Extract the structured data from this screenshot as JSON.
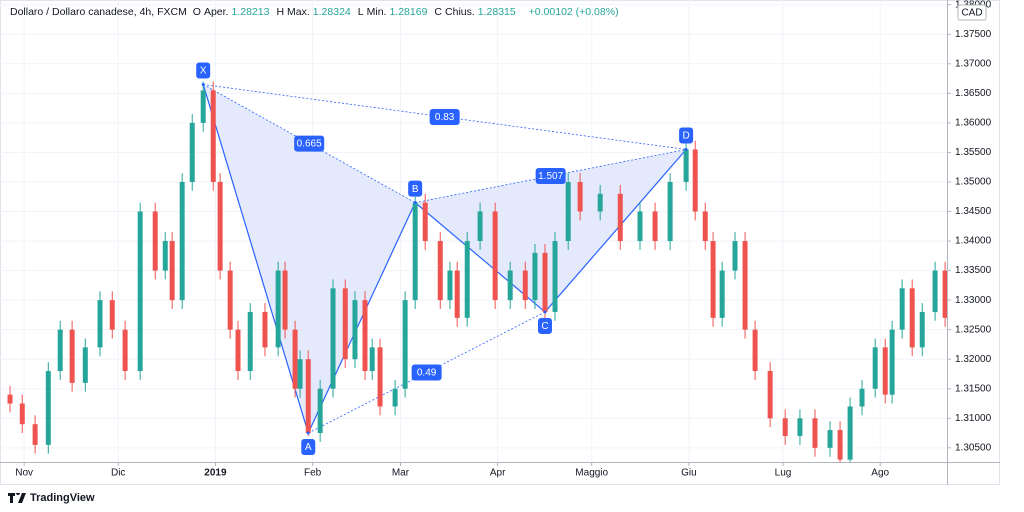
{
  "header": {
    "title": "Dollaro / Dollaro canadese, 4h, FXCM",
    "fields": [
      {
        "key": "O",
        "name": "Aper.",
        "value": "1.28213"
      },
      {
        "key": "H",
        "name": "Max.",
        "value": "1.28324"
      },
      {
        "key": "L",
        "name": "Min.",
        "value": "1.28169"
      },
      {
        "key": "C",
        "name": "Chius.",
        "value": "1.28315"
      }
    ],
    "change": "+0.00102 (+0.08%)"
  },
  "currency": "CAD",
  "brand": "TradingView",
  "chart_data": {
    "type": "candlestick",
    "up_color": "#26a69a",
    "down_color": "#ef5350",
    "grid": true,
    "xlim": [
      -7.7,
      294.3
    ],
    "ylim": [
      1.3026,
      1.3808
    ],
    "xticks": [
      {
        "value": 0,
        "label": "Nov"
      },
      {
        "value": 30,
        "label": "Dic"
      },
      {
        "value": 61,
        "label": "2019"
      },
      {
        "value": 92,
        "label": "Feb"
      },
      {
        "value": 120,
        "label": "Mar"
      },
      {
        "value": 151,
        "label": "Apr"
      },
      {
        "value": 181,
        "label": "Maggio"
      },
      {
        "value": 212,
        "label": "Giu"
      },
      {
        "value": 242,
        "label": "Lug"
      },
      {
        "value": 273,
        "label": "Ago"
      }
    ],
    "yticks": [
      {
        "value": 1.305,
        "label": "1.30500"
      },
      {
        "value": 1.31,
        "label": "1.31000"
      },
      {
        "value": 1.315,
        "label": "1.31500"
      },
      {
        "value": 1.32,
        "label": "1.32000"
      },
      {
        "value": 1.325,
        "label": "1.32500"
      },
      {
        "value": 1.33,
        "label": "1.33000"
      },
      {
        "value": 1.335,
        "label": "1.33500"
      },
      {
        "value": 1.34,
        "label": "1.34000"
      },
      {
        "value": 1.345,
        "label": "1.34500"
      },
      {
        "value": 1.35,
        "label": "1.35000"
      },
      {
        "value": 1.355,
        "label": "1.35500"
      },
      {
        "value": 1.36,
        "label": "1.36000"
      },
      {
        "value": 1.365,
        "label": "1.36500"
      },
      {
        "value": 1.37,
        "label": "1.37000"
      },
      {
        "value": 1.375,
        "label": "1.37500"
      },
      {
        "value": 1.38,
        "label": "1.38000"
      }
    ],
    "x": [
      -4.5,
      -0.6,
      3.5,
      7.7,
      11.5,
      15.3,
      19.5,
      24.2,
      28.1,
      32.2,
      37,
      41.8,
      45,
      47.2,
      50.4,
      53.6,
      57.1,
      60.3,
      62.5,
      65.7,
      68.2,
      72.1,
      76.8,
      81,
      83.2,
      86.4,
      88,
      90.6,
      94.4,
      98.5,
      102.4,
      105.5,
      108.7,
      111,
      113.5,
      118.3,
      121.5,
      124.7,
      127.9,
      132.7,
      135.8,
      138.1,
      141.3,
      145.4,
      150.2,
      155,
      159.8,
      162.9,
      166.1,
      169.3,
      173.5,
      177.3,
      183.7,
      190.1,
      196.4,
      201.2,
      206,
      211.1,
      214,
      217.2,
      219.7,
      222.6,
      226.7,
      229.9,
      233.1,
      237.9,
      242.7,
      247.4,
      252.2,
      257,
      260.2,
      263.4,
      267.2,
      271.4,
      274.6,
      276.8,
      280,
      283.2,
      286.4,
      290.5,
      293.7
    ],
    "open": [
      1.314,
      1.3125,
      1.309,
      1.3055,
      1.318,
      1.325,
      1.316,
      1.322,
      1.33,
      1.325,
      1.318,
      1.345,
      1.335,
      1.34,
      1.33,
      1.35,
      1.36,
      1.3655,
      1.35,
      1.335,
      1.325,
      1.318,
      1.328,
      1.322,
      1.335,
      1.325,
      1.315,
      1.32,
      1.3075,
      1.315,
      1.332,
      1.32,
      1.33,
      1.318,
      1.322,
      1.312,
      1.315,
      1.33,
      1.3465,
      1.34,
      1.33,
      1.335,
      1.327,
      1.34,
      1.345,
      1.33,
      1.335,
      1.33,
      1.338,
      1.328,
      1.34,
      1.35,
      1.345,
      1.348,
      1.34,
      1.345,
      1.34,
      1.35,
      1.3555,
      1.345,
      1.34,
      1.327,
      1.335,
      1.34,
      1.325,
      1.318,
      1.31,
      1.307,
      1.31,
      1.305,
      1.308,
      1.303,
      1.312,
      1.315,
      1.322,
      1.314,
      1.325,
      1.332,
      1.322,
      1.328,
      1.335
    ],
    "high": [
      1.3155,
      1.314,
      1.3105,
      1.3195,
      1.3265,
      1.3265,
      1.3235,
      1.3315,
      1.3315,
      1.3265,
      1.3465,
      1.3465,
      1.3415,
      1.3415,
      1.3515,
      1.3615,
      1.367,
      1.367,
      1.3515,
      1.3365,
      1.3265,
      1.3295,
      1.3295,
      1.3365,
      1.3365,
      1.3265,
      1.3215,
      1.3215,
      1.3165,
      1.3335,
      1.3335,
      1.3315,
      1.3315,
      1.3235,
      1.3235,
      1.3165,
      1.3315,
      1.3475,
      1.348,
      1.3415,
      1.3365,
      1.3365,
      1.3415,
      1.3465,
      1.3465,
      1.3365,
      1.3365,
      1.3395,
      1.3395,
      1.3415,
      1.3515,
      1.3515,
      1.3495,
      1.3495,
      1.3465,
      1.3465,
      1.3515,
      1.357,
      1.357,
      1.3465,
      1.3415,
      1.3365,
      1.3415,
      1.3415,
      1.3265,
      1.3195,
      1.3115,
      1.3115,
      1.3115,
      1.3095,
      1.3095,
      1.3135,
      1.3165,
      1.3235,
      1.3235,
      1.3265,
      1.3335,
      1.3335,
      1.3295,
      1.3365,
      1.3365
    ],
    "low": [
      1.311,
      1.3075,
      1.304,
      1.304,
      1.3165,
      1.3145,
      1.3145,
      1.3205,
      1.3235,
      1.3165,
      1.3165,
      1.3335,
      1.3335,
      1.3285,
      1.3285,
      1.3485,
      1.3585,
      1.3485,
      1.3335,
      1.3235,
      1.3165,
      1.3165,
      1.3205,
      1.3205,
      1.3235,
      1.3135,
      1.3135,
      1.307,
      1.306,
      1.3135,
      1.3185,
      1.3185,
      1.3165,
      1.3165,
      1.3105,
      1.3105,
      1.3135,
      1.3285,
      1.3385,
      1.3285,
      1.3285,
      1.3255,
      1.3255,
      1.3385,
      1.3285,
      1.3285,
      1.3285,
      1.3285,
      1.3265,
      1.3265,
      1.3385,
      1.3435,
      1.3435,
      1.3385,
      1.3385,
      1.3385,
      1.3385,
      1.3485,
      1.3435,
      1.3385,
      1.3255,
      1.3255,
      1.3335,
      1.3235,
      1.3165,
      1.3085,
      1.3055,
      1.3055,
      1.3035,
      1.3035,
      1.3015,
      1.3015,
      1.3105,
      1.3135,
      1.3125,
      1.3125,
      1.3235,
      1.3205,
      1.3205,
      1.3265,
      1.3255
    ],
    "close": [
      1.3125,
      1.309,
      1.3055,
      1.318,
      1.325,
      1.316,
      1.322,
      1.33,
      1.325,
      1.318,
      1.345,
      1.335,
      1.34,
      1.33,
      1.35,
      1.36,
      1.3655,
      1.35,
      1.335,
      1.325,
      1.318,
      1.328,
      1.322,
      1.335,
      1.325,
      1.315,
      1.32,
      1.3075,
      1.315,
      1.332,
      1.32,
      1.33,
      1.318,
      1.322,
      1.312,
      1.315,
      1.33,
      1.3465,
      1.34,
      1.33,
      1.335,
      1.327,
      1.34,
      1.345,
      1.33,
      1.335,
      1.33,
      1.338,
      1.328,
      1.34,
      1.35,
      1.345,
      1.348,
      1.34,
      1.345,
      1.34,
      1.35,
      1.3555,
      1.345,
      1.34,
      1.327,
      1.335,
      1.34,
      1.325,
      1.318,
      1.31,
      1.307,
      1.31,
      1.305,
      1.308,
      1.303,
      1.312,
      1.315,
      1.322,
      1.314,
      1.325,
      1.332,
      1.322,
      1.328,
      1.335,
      1.327
    ],
    "pattern": {
      "color": "#2962ff",
      "fill": "#dde5fb",
      "points": [
        {
          "label": "X",
          "x": 57.1,
          "y": 1.3665
        },
        {
          "label": "A",
          "x": 90.6,
          "y": 1.3075
        },
        {
          "label": "B",
          "x": 124.7,
          "y": 1.3465
        },
        {
          "label": "C",
          "x": 166.1,
          "y": 1.328
        },
        {
          "label": "D",
          "x": 211.1,
          "y": 1.3555
        }
      ],
      "ratios": [
        "0.665",
        "0.83",
        "1.507",
        "0.49"
      ]
    }
  }
}
